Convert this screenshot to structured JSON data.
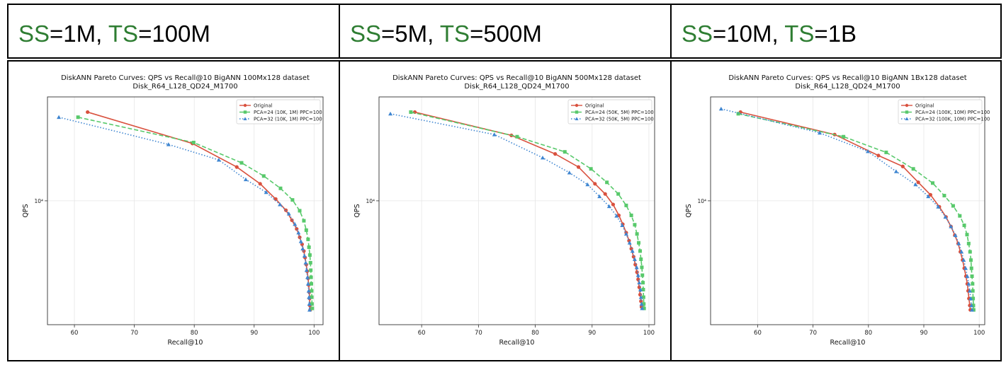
{
  "colors": {
    "original": "#d9513e",
    "pca24": "#58c96b",
    "pca32": "#3f86d1",
    "label_green": "#2e7d32"
  },
  "panels": [
    {
      "header": {
        "ss_label": "SS",
        "ss_value": "=1M, ",
        "ts_label": "TS",
        "ts_value": "=100M"
      }
    },
    {
      "header": {
        "ss_label": "SS",
        "ss_value": "=5M, ",
        "ts_label": "TS",
        "ts_value": "=500M"
      }
    },
    {
      "header": {
        "ss_label": "SS",
        "ss_value": "=10M, ",
        "ts_label": "TS",
        "ts_value": "=1B"
      }
    }
  ],
  "chart_data": [
    {
      "type": "line",
      "title": "DiskANN Pareto Curves: QPS vs Recall@10 BigANN 100Mx128 dataset",
      "subtitle": "Disk_R64_L128_QD24_M1700",
      "xlabel": "Recall@10",
      "ylabel": "QPS",
      "xlim": [
        55.5,
        101.5
      ],
      "ylim_log": [
        2500,
        32000
      ],
      "yscale": "log",
      "xticks": [
        60,
        70,
        80,
        90,
        100
      ],
      "ytick_label": "10⁴",
      "ytick_value": 10000,
      "grid": true,
      "legend_position": "top-right",
      "series": [
        {
          "name": "Original",
          "color_key": "original",
          "marker": "circle",
          "dash": "solid",
          "x": [
            62.2,
            79.7,
            87.1,
            91.0,
            93.6,
            95.3,
            96.3,
            97.1,
            97.6,
            98.0,
            98.3,
            98.5,
            98.7,
            98.85,
            99.0,
            99.1,
            99.2,
            99.25,
            99.3,
            99.35
          ],
          "y": [
            27000,
            19000,
            14600,
            12100,
            10200,
            9000,
            8050,
            7300,
            6650,
            6150,
            5700,
            5300,
            4900,
            4550,
            4200,
            3900,
            3600,
            3350,
            3100,
            2950
          ]
        },
        {
          "name": "PCA=24 (10K, 1M) PPC=100",
          "color_key": "pca24",
          "marker": "square",
          "dash": "dashed",
          "x": [
            60.6,
            79.9,
            87.9,
            91.6,
            94.4,
            96.4,
            97.6,
            98.3,
            98.7,
            99.0,
            99.15,
            99.3,
            99.4,
            99.45,
            99.5,
            99.55,
            99.6,
            99.62,
            99.65,
            99.7
          ],
          "y": [
            25500,
            19200,
            15300,
            13200,
            11500,
            10100,
            8950,
            8000,
            7200,
            6500,
            5950,
            5450,
            5000,
            4600,
            4250,
            3950,
            3650,
            3400,
            3150,
            3000
          ]
        },
        {
          "name": "PCA=32 (10K, 1M) PPC=100",
          "color_key": "pca32",
          "marker": "triangle",
          "dash": "dotted",
          "x": [
            57.4,
            75.7,
            84.1,
            88.6,
            92.0,
            94.3,
            95.8,
            96.8,
            97.4,
            97.8,
            98.1,
            98.4,
            98.6,
            98.75,
            98.9,
            99.0,
            99.1,
            99.15,
            99.2,
            99.25
          ],
          "y": [
            25500,
            18800,
            15800,
            12700,
            11000,
            9600,
            8650,
            7700,
            7000,
            6350,
            5850,
            5400,
            5000,
            4600,
            4250,
            3950,
            3650,
            3400,
            3150,
            2950
          ]
        }
      ]
    },
    {
      "type": "line",
      "title": "DiskANN Pareto Curves: QPS vs Recall@10 BigANN 500Mx128 dataset",
      "subtitle": "Disk_R64_L128_QD24_M1700",
      "xlabel": "Recall@10",
      "ylabel": "QPS",
      "xlim": [
        52.5,
        101.0
      ],
      "ylim_log": [
        2500,
        32000
      ],
      "yscale": "log",
      "xticks": [
        60,
        70,
        80,
        90,
        100
      ],
      "ytick_label": "10⁴",
      "ytick_value": 10000,
      "grid": true,
      "legend_position": "top-right",
      "series": [
        {
          "name": "Original",
          "color_key": "original",
          "marker": "circle",
          "dash": "solid",
          "x": [
            58.8,
            75.8,
            83.5,
            87.6,
            90.5,
            92.3,
            93.7,
            94.7,
            95.4,
            96.0,
            96.5,
            96.9,
            97.3,
            97.6,
            97.9,
            98.1,
            98.3,
            98.45,
            98.6,
            98.7
          ],
          "y": [
            27000,
            20800,
            16900,
            14600,
            12100,
            10800,
            9600,
            8500,
            7700,
            7000,
            6400,
            5850,
            5350,
            4900,
            4500,
            4150,
            3800,
            3500,
            3250,
            3050
          ]
        },
        {
          "name": "PCA=24 (50K, 5M) PPC=100",
          "color_key": "pca24",
          "marker": "square",
          "dash": "dashed",
          "x": [
            58.1,
            76.8,
            85.2,
            89.8,
            92.6,
            94.6,
            96.0,
            96.9,
            97.5,
            97.9,
            98.2,
            98.45,
            98.6,
            98.75,
            98.85,
            98.95,
            99.0,
            99.05,
            99.1,
            99.15
          ],
          "y": [
            27000,
            20500,
            17300,
            14300,
            12300,
            10800,
            9500,
            8500,
            7650,
            6900,
            6250,
            5700,
            5200,
            4750,
            4350,
            4000,
            3700,
            3400,
            3150,
            3000
          ]
        },
        {
          "name": "PCA=32 (50K, 5M) PPC=100",
          "color_key": "pca32",
          "marker": "triangle",
          "dash": "dotted",
          "x": [
            54.5,
            72.8,
            81.3,
            86.0,
            89.2,
            91.3,
            93.0,
            94.3,
            95.3,
            96.0,
            96.6,
            97.1,
            97.5,
            97.85,
            98.1,
            98.3,
            98.5,
            98.6,
            98.7,
            98.8
          ],
          "y": [
            26500,
            21000,
            16200,
            13700,
            12000,
            10500,
            9400,
            8450,
            7600,
            6900,
            6250,
            5700,
            5200,
            4750,
            4350,
            4000,
            3700,
            3400,
            3150,
            3000
          ]
        }
      ]
    },
    {
      "type": "line",
      "title": "DiskANN Pareto Curves: QPS vs Recall@10 BigANN 1Bx128 dataset",
      "subtitle": "Disk_R64_L128_QD24_M1700",
      "xlabel": "Recall@10",
      "ylabel": "QPS",
      "xlim": [
        51.5,
        101.0
      ],
      "ylim_log": [
        2500,
        32000
      ],
      "yscale": "log",
      "xticks": [
        60,
        70,
        80,
        90,
        100
      ],
      "ytick_label": "10⁴",
      "ytick_value": 10000,
      "grid": true,
      "legend_position": "top-right",
      "series": [
        {
          "name": "Original",
          "color_key": "original",
          "marker": "circle",
          "dash": "solid",
          "x": [
            56.9,
            73.9,
            81.8,
            86.2,
            89.0,
            91.2,
            92.8,
            94.0,
            94.9,
            95.6,
            96.2,
            96.6,
            97.0,
            97.3,
            97.6,
            97.85,
            98.0,
            98.15,
            98.3,
            98.4
          ],
          "y": [
            27000,
            21000,
            16600,
            14700,
            12300,
            10700,
            9350,
            8350,
            7500,
            6800,
            6200,
            5650,
            5150,
            4700,
            4300,
            3950,
            3650,
            3350,
            3100,
            2950
          ]
        },
        {
          "name": "PCA=24 (100K, 10M) PPC=100",
          "color_key": "pca24",
          "marker": "square",
          "dash": "dashed",
          "x": [
            56.5,
            75.5,
            83.2,
            88.1,
            91.6,
            93.7,
            95.3,
            96.5,
            97.3,
            97.8,
            98.1,
            98.35,
            98.5,
            98.6,
            98.7,
            98.8,
            98.85,
            98.9,
            98.95,
            99.0
          ],
          "y": [
            26500,
            20500,
            17200,
            14300,
            12200,
            10600,
            9450,
            8450,
            7600,
            6850,
            6200,
            5650,
            5150,
            4700,
            4300,
            3950,
            3650,
            3350,
            3100,
            2950
          ]
        },
        {
          "name": "PCA=32 (100K, 10M) PPC=100",
          "color_key": "pca32",
          "marker": "triangle",
          "dash": "dotted",
          "x": [
            53.4,
            71.2,
            79.9,
            85.0,
            88.5,
            90.8,
            92.6,
            93.9,
            94.9,
            95.7,
            96.3,
            96.8,
            97.2,
            97.55,
            97.85,
            98.1,
            98.3,
            98.45,
            98.6,
            98.7
          ],
          "y": [
            28000,
            21400,
            17400,
            13900,
            12000,
            10500,
            9350,
            8350,
            7500,
            6800,
            6200,
            5650,
            5150,
            4700,
            4300,
            3950,
            3650,
            3350,
            3100,
            2950
          ]
        }
      ]
    }
  ]
}
